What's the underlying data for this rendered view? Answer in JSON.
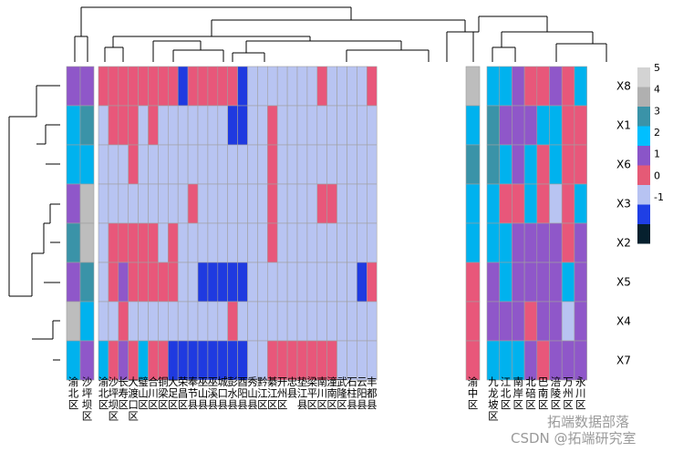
{
  "chart_data": {
    "type": "heatmap",
    "title": "",
    "rows": [
      "X8",
      "X1",
      "X6",
      "X3",
      "X2",
      "X5",
      "X4",
      "X7"
    ],
    "annotation_values": [
      [
        1,
        1
      ],
      [
        2,
        3
      ],
      [
        2,
        2
      ],
      [
        1,
        4
      ],
      [
        3,
        4
      ],
      [
        1,
        3
      ],
      [
        4,
        2
      ],
      [
        2,
        1
      ]
    ],
    "column_groups": [
      {
        "columns": [
          "渝北区",
          "沙坪坝区",
          "长寿区",
          "大渡口区",
          "璧山区",
          "合川区",
          "铜梁区",
          "大足区",
          "荣昌区",
          "奉节县",
          "巫山县",
          "巫溪县",
          "城口县",
          "彭水县",
          "酉阳县",
          "秀山县",
          "黔江区",
          "綦江区",
          "开州区",
          "忠县",
          "垫江县",
          "梁平区",
          "南川区",
          "潼南区",
          "武隆区",
          "石柱县",
          "云阳县",
          "丰都县"
        ],
        "values": [
          [
            0,
            0,
            0,
            0,
            0,
            0,
            0,
            0,
            -2,
            0,
            0,
            0,
            0,
            0,
            -2,
            -1,
            -1,
            -1,
            -1,
            -1,
            -1,
            -1,
            0,
            -1,
            -1,
            -1,
            -1,
            0
          ],
          [
            -1,
            0,
            0,
            0,
            -1,
            0,
            -1,
            -1,
            -1,
            -1,
            -1,
            -1,
            -1,
            -2,
            -2,
            -1,
            -1,
            0,
            -1,
            -1,
            -1,
            -1,
            -1,
            -1,
            -1,
            -1,
            -1,
            -1
          ],
          [
            -1,
            -1,
            -1,
            0,
            -1,
            -1,
            -1,
            -1,
            -1,
            -1,
            -1,
            -1,
            -1,
            -1,
            -1,
            -1,
            -1,
            0,
            -1,
            -1,
            -1,
            -1,
            -1,
            -1,
            -1,
            -1,
            -1,
            -1
          ],
          [
            -1,
            -1,
            -1,
            -1,
            -1,
            -1,
            -1,
            -1,
            -1,
            0,
            -1,
            -1,
            -1,
            -1,
            -1,
            -1,
            -1,
            0,
            -1,
            -1,
            -1,
            -1,
            0,
            0,
            -1,
            -1,
            -1,
            -1
          ],
          [
            -1,
            0,
            0,
            0,
            0,
            0,
            -1,
            0,
            -1,
            -1,
            -1,
            -1,
            -1,
            -1,
            -1,
            -1,
            -1,
            0,
            -1,
            -1,
            -1,
            -1,
            -1,
            -1,
            -1,
            -1,
            -1,
            -1
          ],
          [
            -1,
            0,
            1,
            0,
            0,
            0,
            0,
            0,
            -1,
            -1,
            -2,
            -2,
            -2,
            -2,
            -2,
            -1,
            -1,
            -1,
            -1,
            -1,
            -1,
            -1,
            -1,
            -1,
            -1,
            -1,
            -2,
            0
          ],
          [
            -1,
            -1,
            0,
            -1,
            -1,
            -1,
            -1,
            -1,
            -1,
            -1,
            -1,
            -1,
            -1,
            0,
            -1,
            -1,
            -1,
            -1,
            -1,
            -1,
            -1,
            -1,
            -1,
            -1,
            -1,
            -1,
            -1,
            -1
          ],
          [
            2,
            0,
            1,
            0,
            2,
            0,
            0,
            -2,
            -2,
            -2,
            -2,
            -2,
            -2,
            -2,
            -2,
            -1,
            -1,
            0,
            0,
            0,
            0,
            0,
            0,
            0,
            -1,
            -1,
            -1,
            -1
          ]
        ]
      },
      {
        "columns": [
          "渝中区"
        ],
        "values": [
          [
            4
          ],
          [
            2
          ],
          [
            3
          ],
          [
            2
          ],
          [
            2
          ],
          [
            0
          ],
          [
            0
          ],
          [
            0
          ]
        ]
      },
      {
        "columns": [
          "九龙坡区",
          "江北区",
          "南岸区",
          "北碚区",
          "巴南区",
          "涪陵区",
          "万州区",
          "永川区"
        ],
        "values": [
          [
            2,
            2,
            1,
            0,
            0,
            1,
            0,
            2
          ],
          [
            3,
            1,
            1,
            1,
            2,
            2,
            0,
            0
          ],
          [
            3,
            2,
            1,
            2,
            0,
            2,
            0,
            0
          ],
          [
            2,
            0,
            0,
            2,
            0,
            -1,
            0,
            2
          ],
          [
            2,
            2,
            1,
            1,
            1,
            1,
            0,
            1
          ],
          [
            1,
            2,
            1,
            1,
            1,
            1,
            2,
            1
          ],
          [
            1,
            1,
            1,
            0,
            1,
            1,
            -1,
            1
          ],
          [
            2,
            2,
            2,
            1,
            0,
            1,
            1,
            1
          ]
        ]
      }
    ],
    "legend": {
      "position": "right",
      "levels": [
        5,
        4,
        3,
        2,
        1,
        0,
        -1,
        -2
      ],
      "tick_labels": [
        "5",
        "4",
        "3",
        "2",
        "1",
        "0",
        "-1"
      ],
      "colors": [
        "#d3d3d3",
        "#b0b0b0",
        "#3a93a8",
        "#00bfff",
        "#8a55c8",
        "#e55a76",
        "#b7c3f2",
        "#1f3fe5",
        "#06202e"
      ]
    },
    "color_map": {
      "5": "#d6d6d6",
      "4": "#bdbdbd",
      "3": "#3a93a8",
      "2": "#00b2ee",
      "1": "#8f57c9",
      "0": "#e8577a",
      "-1": "#b8c4f2",
      "-2": "#1f3ae0",
      "-3": "#061c2b"
    }
  },
  "watermarks": [
    "拓端数据部落",
    "CSDN @拓端研究室"
  ]
}
